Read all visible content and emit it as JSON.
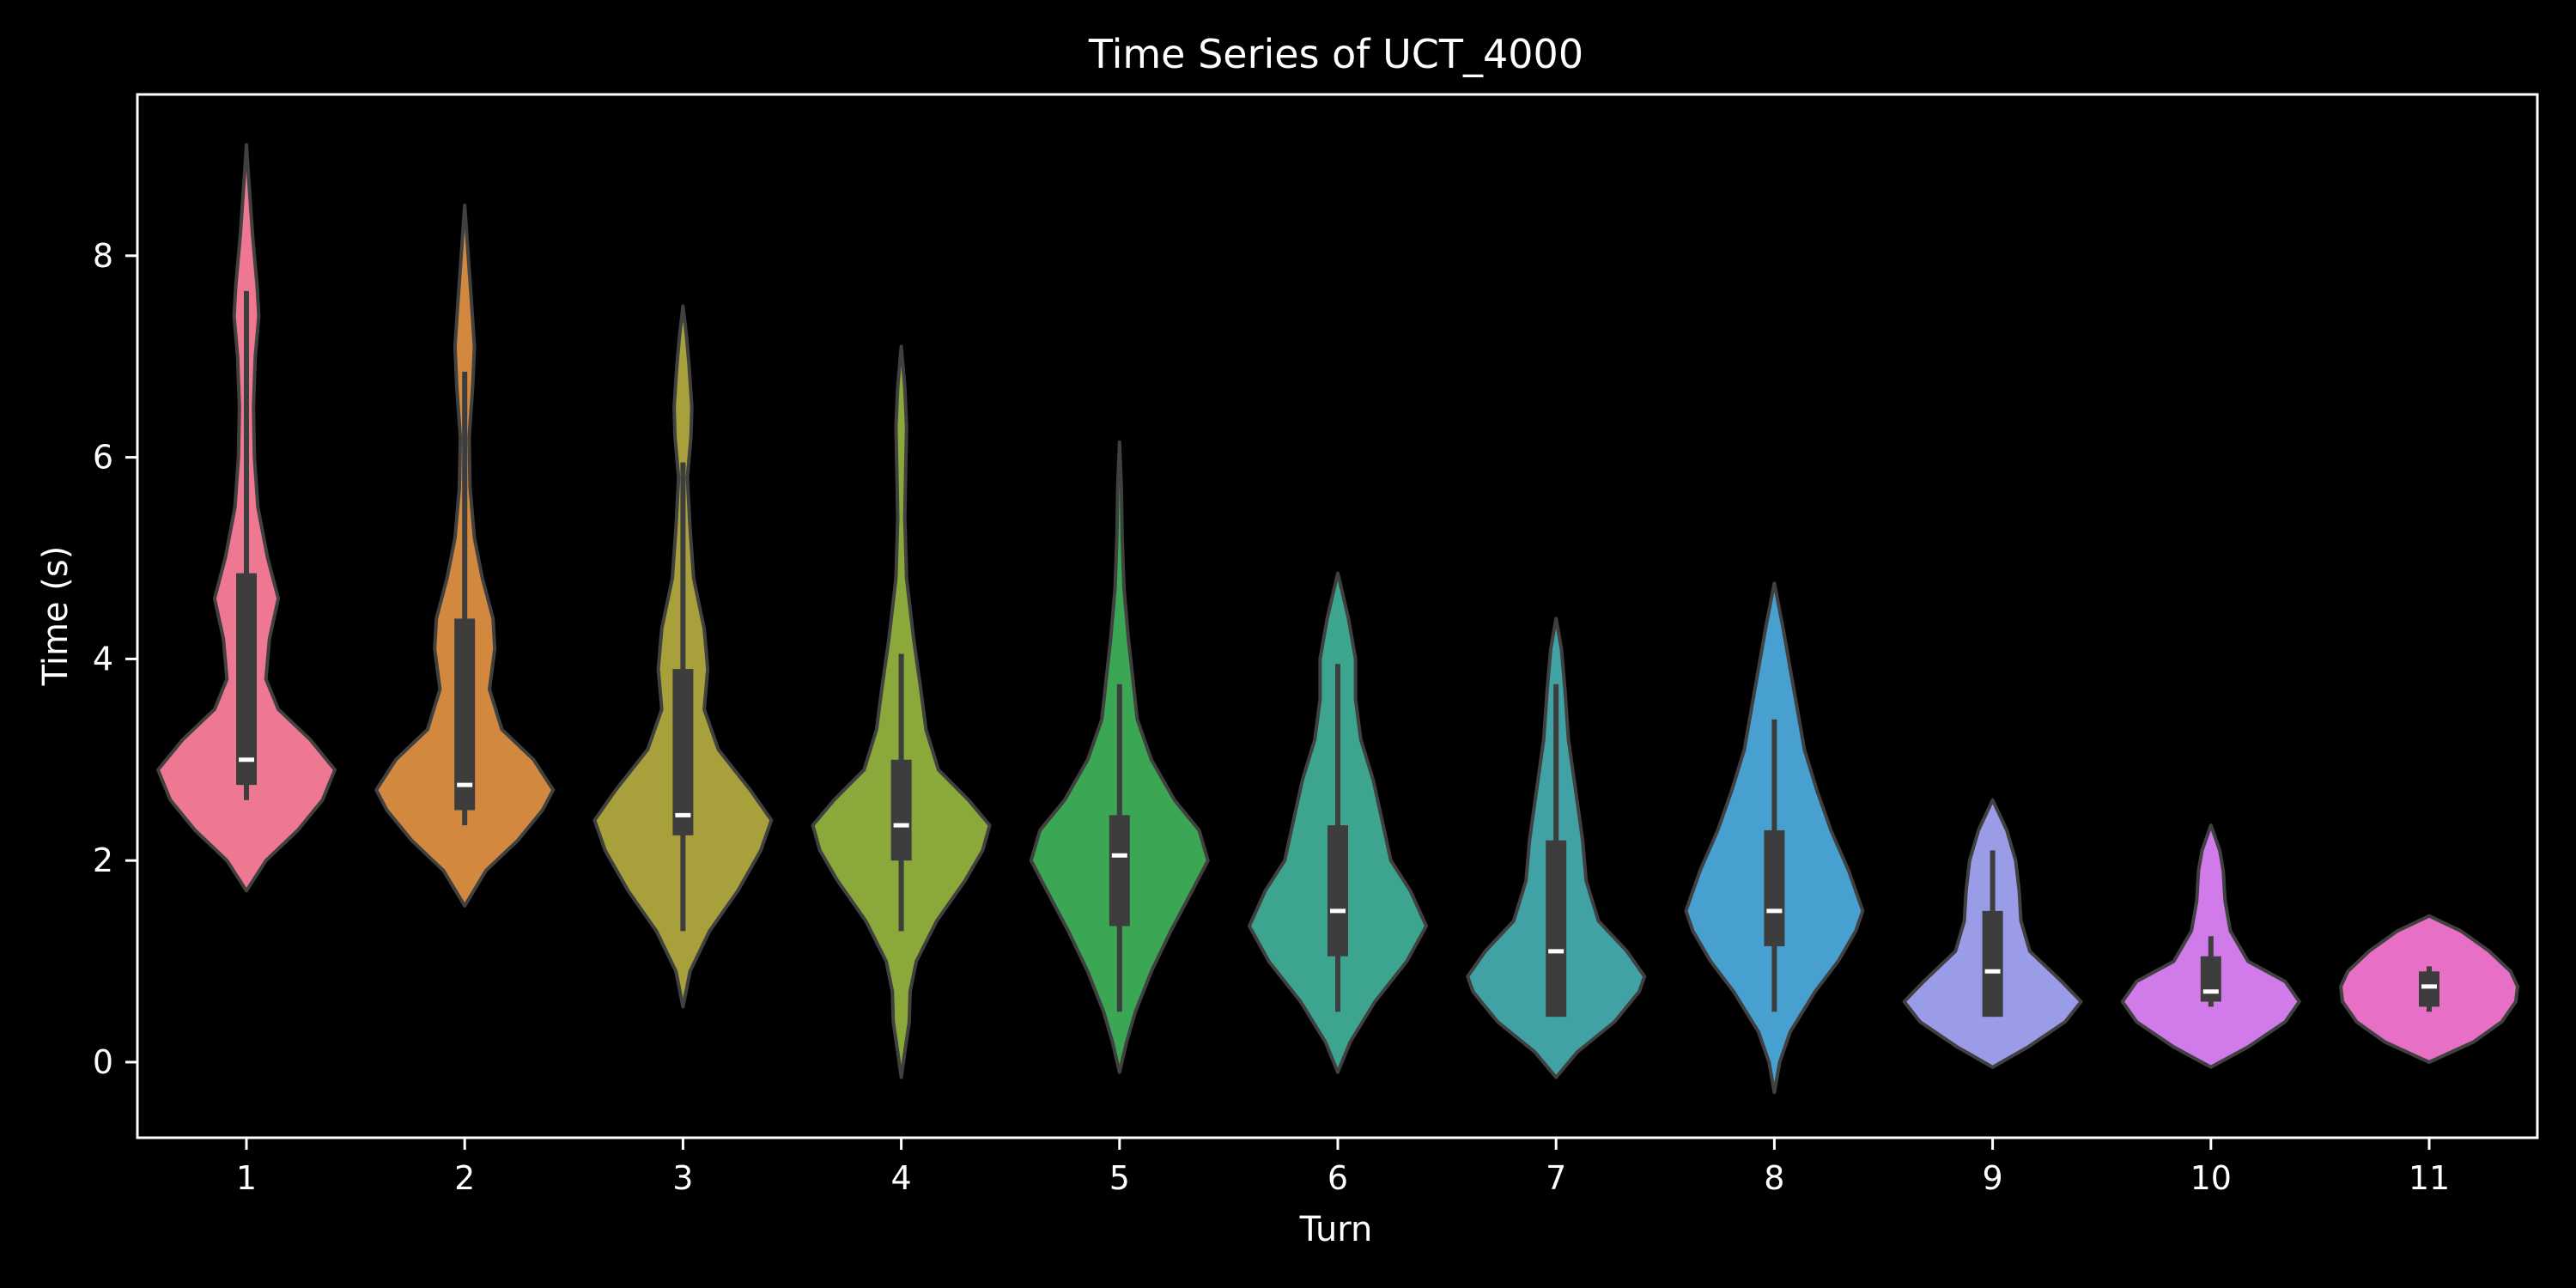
{
  "chart_data": {
    "type": "violin",
    "title": "Time Series of UCT_4000",
    "xlabel": "Turn",
    "ylabel": "Time (s)",
    "ylim": [
      -0.75,
      9.6
    ],
    "yticks": [
      0,
      2,
      4,
      6,
      8
    ],
    "grid": false,
    "background": "#000000",
    "categories": [
      "1",
      "2",
      "3",
      "4",
      "5",
      "6",
      "7",
      "8",
      "9",
      "10",
      "11"
    ],
    "colors": [
      "#ee7891",
      "#d2893f",
      "#a8a03a",
      "#8ba83a",
      "#3ba654",
      "#3da58f",
      "#41a2a6",
      "#48a0d0",
      "#9a9ce8",
      "#d07be9",
      "#e76fc5"
    ],
    "series": [
      {
        "min": 1.7,
        "q1": 2.75,
        "median": 3.0,
        "q3": 4.85,
        "whisker_low": 2.6,
        "whisker_high": 7.65,
        "max": 9.1,
        "shape": [
          [
            1.7,
            0.0
          ],
          [
            2.0,
            0.22
          ],
          [
            2.3,
            0.58
          ],
          [
            2.6,
            0.86
          ],
          [
            2.9,
            1.0
          ],
          [
            3.2,
            0.72
          ],
          [
            3.5,
            0.36
          ],
          [
            3.8,
            0.22
          ],
          [
            4.2,
            0.26
          ],
          [
            4.6,
            0.36
          ],
          [
            5.0,
            0.24
          ],
          [
            5.5,
            0.13
          ],
          [
            6.0,
            0.09
          ],
          [
            6.5,
            0.08
          ],
          [
            7.0,
            0.1
          ],
          [
            7.4,
            0.14
          ],
          [
            7.7,
            0.12
          ],
          [
            8.2,
            0.07
          ],
          [
            8.7,
            0.03
          ],
          [
            9.1,
            0.0
          ]
        ]
      },
      {
        "min": 1.55,
        "q1": 2.5,
        "median": 2.75,
        "q3": 4.4,
        "whisker_low": 2.35,
        "whisker_high": 6.85,
        "max": 8.5,
        "shape": [
          [
            1.55,
            0.0
          ],
          [
            1.9,
            0.24
          ],
          [
            2.2,
            0.6
          ],
          [
            2.5,
            0.88
          ],
          [
            2.7,
            1.0
          ],
          [
            3.0,
            0.78
          ],
          [
            3.3,
            0.42
          ],
          [
            3.7,
            0.28
          ],
          [
            4.1,
            0.34
          ],
          [
            4.4,
            0.32
          ],
          [
            4.8,
            0.2
          ],
          [
            5.2,
            0.11
          ],
          [
            5.7,
            0.06
          ],
          [
            6.2,
            0.05
          ],
          [
            6.7,
            0.09
          ],
          [
            7.1,
            0.11
          ],
          [
            7.5,
            0.08
          ],
          [
            8.0,
            0.04
          ],
          [
            8.5,
            0.0
          ]
        ]
      },
      {
        "min": 0.55,
        "q1": 2.25,
        "median": 2.45,
        "q3": 3.9,
        "whisker_low": 1.3,
        "whisker_high": 5.95,
        "max": 7.5,
        "shape": [
          [
            0.55,
            0.0
          ],
          [
            0.9,
            0.08
          ],
          [
            1.3,
            0.3
          ],
          [
            1.7,
            0.62
          ],
          [
            2.1,
            0.88
          ],
          [
            2.4,
            1.0
          ],
          [
            2.7,
            0.76
          ],
          [
            3.1,
            0.4
          ],
          [
            3.5,
            0.24
          ],
          [
            3.9,
            0.28
          ],
          [
            4.3,
            0.24
          ],
          [
            4.8,
            0.12
          ],
          [
            5.3,
            0.08
          ],
          [
            5.8,
            0.05
          ],
          [
            6.2,
            0.09
          ],
          [
            6.5,
            0.1
          ],
          [
            6.9,
            0.07
          ],
          [
            7.2,
            0.04
          ],
          [
            7.5,
            0.0
          ]
        ]
      },
      {
        "min": -0.15,
        "q1": 2.0,
        "median": 2.35,
        "q3": 3.0,
        "whisker_low": 1.3,
        "whisker_high": 4.05,
        "max": 7.1,
        "shape": [
          [
            -0.15,
            0.0
          ],
          [
            0.1,
            0.04
          ],
          [
            0.4,
            0.09
          ],
          [
            0.7,
            0.1
          ],
          [
            1.0,
            0.17
          ],
          [
            1.4,
            0.4
          ],
          [
            1.8,
            0.72
          ],
          [
            2.1,
            0.92
          ],
          [
            2.35,
            1.0
          ],
          [
            2.6,
            0.76
          ],
          [
            2.9,
            0.42
          ],
          [
            3.3,
            0.28
          ],
          [
            3.7,
            0.22
          ],
          [
            4.2,
            0.14
          ],
          [
            4.8,
            0.06
          ],
          [
            5.4,
            0.04
          ],
          [
            5.9,
            0.05
          ],
          [
            6.3,
            0.06
          ],
          [
            6.7,
            0.04
          ],
          [
            7.1,
            0.0
          ]
        ]
      },
      {
        "min": -0.1,
        "q1": 1.35,
        "median": 2.05,
        "q3": 2.45,
        "whisker_low": 0.5,
        "whisker_high": 3.75,
        "max": 6.15,
        "shape": [
          [
            -0.1,
            0.0
          ],
          [
            0.2,
            0.08
          ],
          [
            0.5,
            0.18
          ],
          [
            0.9,
            0.36
          ],
          [
            1.3,
            0.58
          ],
          [
            1.7,
            0.82
          ],
          [
            2.0,
            1.0
          ],
          [
            2.3,
            0.9
          ],
          [
            2.6,
            0.62
          ],
          [
            3.0,
            0.36
          ],
          [
            3.4,
            0.2
          ],
          [
            3.8,
            0.15
          ],
          [
            4.2,
            0.1
          ],
          [
            4.7,
            0.05
          ],
          [
            5.2,
            0.03
          ],
          [
            5.7,
            0.02
          ],
          [
            6.15,
            0.0
          ]
        ]
      },
      {
        "min": -0.1,
        "q1": 1.05,
        "median": 1.5,
        "q3": 2.35,
        "whisker_low": 0.5,
        "whisker_high": 3.95,
        "max": 4.85,
        "shape": [
          [
            -0.1,
            0.0
          ],
          [
            0.2,
            0.14
          ],
          [
            0.6,
            0.42
          ],
          [
            1.0,
            0.78
          ],
          [
            1.35,
            1.0
          ],
          [
            1.7,
            0.82
          ],
          [
            2.0,
            0.6
          ],
          [
            2.4,
            0.5
          ],
          [
            2.8,
            0.4
          ],
          [
            3.2,
            0.26
          ],
          [
            3.6,
            0.2
          ],
          [
            4.0,
            0.2
          ],
          [
            4.4,
            0.12
          ],
          [
            4.85,
            0.0
          ]
        ]
      },
      {
        "min": -0.15,
        "q1": 0.45,
        "median": 1.1,
        "q3": 2.2,
        "whisker_low": 0.45,
        "whisker_high": 3.75,
        "max": 4.4,
        "shape": [
          [
            -0.15,
            0.0
          ],
          [
            0.1,
            0.24
          ],
          [
            0.4,
            0.66
          ],
          [
            0.7,
            0.94
          ],
          [
            0.85,
            1.0
          ],
          [
            1.1,
            0.8
          ],
          [
            1.4,
            0.48
          ],
          [
            1.8,
            0.34
          ],
          [
            2.2,
            0.3
          ],
          [
            2.7,
            0.22
          ],
          [
            3.2,
            0.14
          ],
          [
            3.7,
            0.1
          ],
          [
            4.1,
            0.06
          ],
          [
            4.4,
            0.0
          ]
        ]
      },
      {
        "min": -0.3,
        "q1": 1.15,
        "median": 1.5,
        "q3": 2.3,
        "whisker_low": 0.5,
        "whisker_high": 3.4,
        "max": 4.75,
        "shape": [
          [
            -0.3,
            0.0
          ],
          [
            0.0,
            0.06
          ],
          [
            0.3,
            0.18
          ],
          [
            0.7,
            0.46
          ],
          [
            1.0,
            0.72
          ],
          [
            1.3,
            0.92
          ],
          [
            1.5,
            1.0
          ],
          [
            1.9,
            0.84
          ],
          [
            2.3,
            0.64
          ],
          [
            2.7,
            0.48
          ],
          [
            3.1,
            0.34
          ],
          [
            3.5,
            0.26
          ],
          [
            3.9,
            0.18
          ],
          [
            4.3,
            0.1
          ],
          [
            4.75,
            0.0
          ]
        ]
      },
      {
        "min": -0.05,
        "q1": 0.45,
        "median": 0.9,
        "q3": 1.5,
        "whisker_low": 0.45,
        "whisker_high": 2.1,
        "max": 2.6,
        "shape": [
          [
            -0.05,
            0.0
          ],
          [
            0.15,
            0.4
          ],
          [
            0.4,
            0.82
          ],
          [
            0.6,
            1.0
          ],
          [
            0.8,
            0.78
          ],
          [
            1.1,
            0.42
          ],
          [
            1.4,
            0.32
          ],
          [
            1.7,
            0.3
          ],
          [
            2.0,
            0.26
          ],
          [
            2.3,
            0.16
          ],
          [
            2.6,
            0.0
          ]
        ]
      },
      {
        "min": -0.05,
        "q1": 0.6,
        "median": 0.7,
        "q3": 1.05,
        "whisker_low": 0.55,
        "whisker_high": 1.25,
        "max": 2.35,
        "shape": [
          [
            -0.05,
            0.0
          ],
          [
            0.15,
            0.42
          ],
          [
            0.4,
            0.84
          ],
          [
            0.6,
            1.0
          ],
          [
            0.8,
            0.84
          ],
          [
            1.0,
            0.42
          ],
          [
            1.3,
            0.22
          ],
          [
            1.6,
            0.16
          ],
          [
            1.9,
            0.14
          ],
          [
            2.1,
            0.1
          ],
          [
            2.35,
            0.0
          ]
        ]
      },
      {
        "min": 0.0,
        "q1": 0.55,
        "median": 0.75,
        "q3": 0.9,
        "whisker_low": 0.5,
        "whisker_high": 0.95,
        "max": 1.45,
        "shape": [
          [
            0.0,
            0.0
          ],
          [
            0.2,
            0.5
          ],
          [
            0.4,
            0.82
          ],
          [
            0.6,
            0.98
          ],
          [
            0.75,
            1.0
          ],
          [
            0.9,
            0.92
          ],
          [
            1.1,
            0.68
          ],
          [
            1.3,
            0.36
          ],
          [
            1.45,
            0.0
          ]
        ]
      }
    ]
  }
}
